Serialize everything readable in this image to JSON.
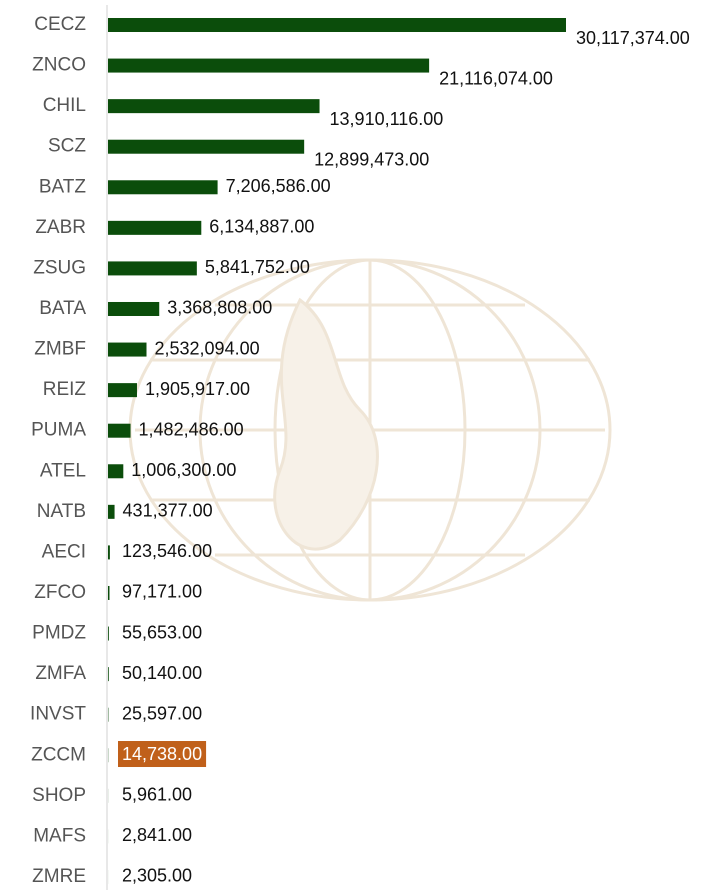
{
  "chart_data": {
    "type": "bar",
    "orientation": "horizontal",
    "color": "#0b4d0b",
    "categories": [
      "CECZ",
      "ZNCO",
      "CHIL",
      "SCZ",
      "BATZ",
      "ZABR",
      "ZSUG",
      "BATA",
      "ZMBF",
      "REIZ",
      "PUMA",
      "ATEL",
      "NATB",
      "AECI",
      "ZFCO",
      "PMDZ",
      "ZMFA",
      "INVST",
      "ZCCM",
      "SHOP",
      "MAFS",
      "ZMRE"
    ],
    "values": [
      30117374,
      21116074,
      13910116,
      12899473,
      7206586,
      6134887,
      5841752,
      3368808,
      2532094,
      1905917,
      1482486,
      1006300,
      431377,
      123546,
      97171,
      55653,
      50140,
      25597,
      14738,
      5961,
      2841,
      2305
    ],
    "value_labels": [
      "30,117,374.00",
      "21,116,074.00",
      "13,910,116.00",
      "12,899,473.00",
      "7,206,586.00",
      "6,134,887.00",
      "5,841,752.00",
      "3,368,808.00",
      "2,532,094.00",
      "1,905,917.00",
      "1,482,486.00",
      "1,006,300.00",
      "431,377.00",
      "123,546.00",
      "97,171.00",
      "55,653.00",
      "50,140.00",
      "25,597.00",
      "14,738.00",
      "5,961.00",
      "2,841.00",
      "2,305.00"
    ],
    "highlight": {
      "index": 18,
      "color": "#c0601a"
    }
  }
}
